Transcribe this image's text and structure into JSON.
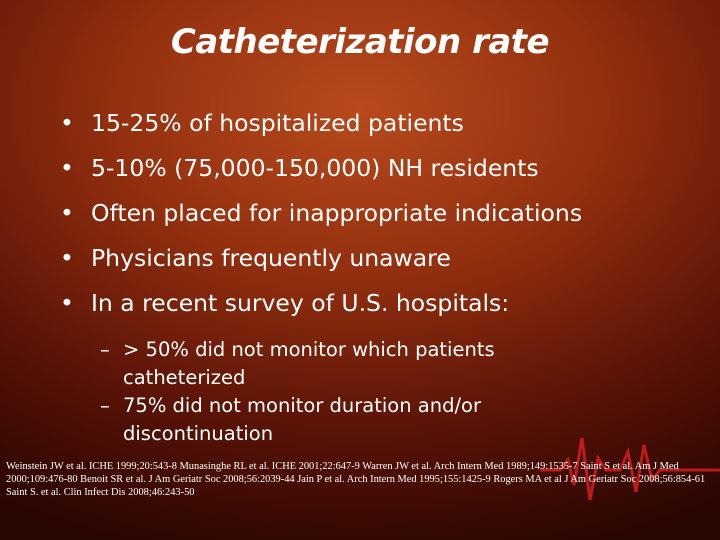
{
  "slide": {
    "title": "Catheterization rate",
    "bullets": [
      "15-25% of hospitalized patients",
      "5-10% (75,000-150,000) NH residents",
      "Often placed for inappropriate indications",
      "Physicians frequently unaware",
      "In a recent survey of U.S. hospitals:"
    ],
    "sub_bullets": [
      "> 50% did not monitor which patients catheterized",
      "75% did not monitor duration and/or discontinuation"
    ],
    "references": "Weinstein JW et al. ICHE 1999;20:543-8 Munasinghe RL et al. ICHE 2001;22:647-9 Warren JW et al. Arch Intern Med 1989;149:1535-7 Saint S et al. Am J Med 2000;109:476-80 Benoit SR et al. J Am Geriatr Soc 2008;56:2039-44 Jain P et al. Arch Intern Med 1995;155:1425-9 Rogers MA et al J Am Geriatr Soc 2008;56:854-61 Saint S. et al. Clin Infect Dis 2008;46:243-50",
    "bullet_symbol": "•",
    "dash_symbol": "–",
    "decoration_icon": "ekg-heartbeat-icon",
    "colors": {
      "text": "#ffffff",
      "background": "#94300f",
      "ekg_line": "#d41e1e"
    }
  }
}
